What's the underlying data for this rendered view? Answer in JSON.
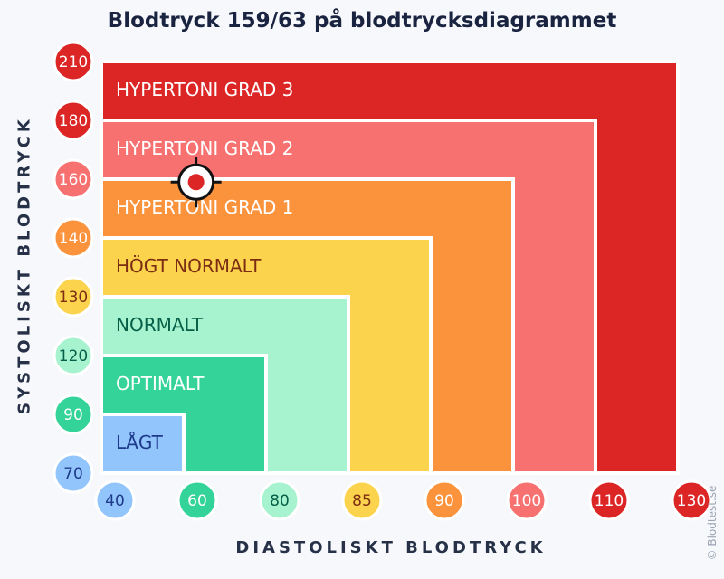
{
  "chart_data": {
    "type": "heatmap",
    "title": "Blodtryck 159/63 på blodtrycksdiagrammet",
    "xlabel": "DIASTOLISKT BLODTRYCK",
    "ylabel": "SYSTOLISKT BLODTRYCK",
    "x_ticks": [
      "40",
      "60",
      "80",
      "85",
      "90",
      "100",
      "110",
      "130"
    ],
    "y_ticks": [
      "70",
      "90",
      "120",
      "130",
      "140",
      "160",
      "180",
      "210"
    ],
    "categories": [
      {
        "name": "HYPERTONI GRAD 3",
        "systolic_max": 210,
        "diastolic_max": 130,
        "color": "#dc2626",
        "text_color": "#ffffff"
      },
      {
        "name": "HYPERTONI GRAD 2",
        "systolic_max": 180,
        "diastolic_max": 110,
        "color": "#f87171",
        "text_color": "#ffffff"
      },
      {
        "name": "HYPERTONI GRAD 1",
        "systolic_max": 160,
        "diastolic_max": 100,
        "color": "#fb923c",
        "text_color": "#ffffff"
      },
      {
        "name": "HÖGT NORMALT",
        "systolic_max": 140,
        "diastolic_max": 90,
        "color": "#fcd34d",
        "text_color": "#7c2d12"
      },
      {
        "name": "NORMALT",
        "systolic_max": 130,
        "diastolic_max": 85,
        "color": "#a7f3d0",
        "text_color": "#065f46"
      },
      {
        "name": "OPTIMALT",
        "systolic_max": 120,
        "diastolic_max": 80,
        "color": "#34d399",
        "text_color": "#ffffff"
      },
      {
        "name": "LÅGT",
        "systolic_max": 90,
        "diastolic_max": 60,
        "color": "#93c5fd",
        "text_color": "#1e3a8a"
      }
    ],
    "marker": {
      "systolic": 159,
      "diastolic": 63
    },
    "tick_colors": {
      "x": [
        "#93c5fd",
        "#34d399",
        "#a7f3d0",
        "#fcd34d",
        "#fb923c",
        "#f87171",
        "#dc2626",
        "#dc2626"
      ],
      "y": [
        "#93c5fd",
        "#34d399",
        "#a7f3d0",
        "#fcd34d",
        "#fb923c",
        "#f87171",
        "#dc2626",
        "#dc2626"
      ]
    },
    "tick_text_colors": {
      "x": [
        "#1e3a8a",
        "#ffffff",
        "#065f46",
        "#7c2d12",
        "#ffffff",
        "#ffffff",
        "#ffffff",
        "#ffffff"
      ],
      "y": [
        "#1e3a8a",
        "#ffffff",
        "#065f46",
        "#7c2d12",
        "#ffffff",
        "#ffffff",
        "#ffffff",
        "#ffffff"
      ]
    },
    "grid": false
  },
  "credit": "© Blodtest.se"
}
